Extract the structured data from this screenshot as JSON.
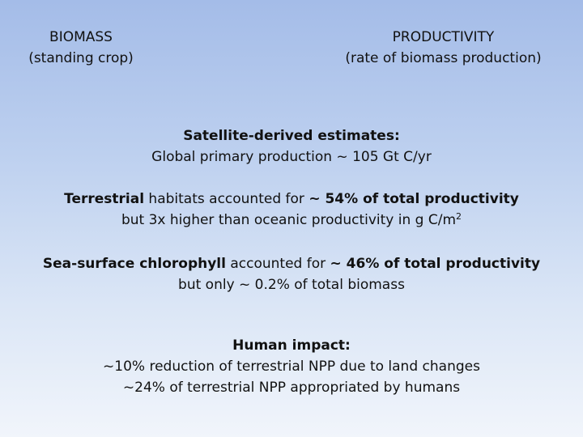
{
  "headers": {
    "biomass": {
      "title": "BIOMASS",
      "subtitle": "(standing crop)"
    },
    "productivity": {
      "title": "PRODUCTIVITY",
      "subtitle": "(rate of biomass production)"
    }
  },
  "satellite": {
    "heading": "Satellite-derived estimates:",
    "line": "Global primary production ~ 105 Gt C/yr"
  },
  "terrestrial": {
    "bold_1": "Terrestrial",
    "text_1": " habitats accounted for ",
    "bold_2": "~ 54% of total productivity",
    "line2_text": "but 3x higher than oceanic productivity in g C/m",
    "line2_sup": "2"
  },
  "sea": {
    "bold_1": "Sea-surface chlorophyll",
    "text_1": " accounted for ",
    "bold_2": "~ 46% of total productivity",
    "line2": "but only ~ 0.2% of total biomass"
  },
  "human": {
    "heading": "Human impact:",
    "line1": "~10% reduction of terrestrial NPP due to land changes",
    "line2": "~24% of terrestrial NPP appropriated by humans"
  }
}
